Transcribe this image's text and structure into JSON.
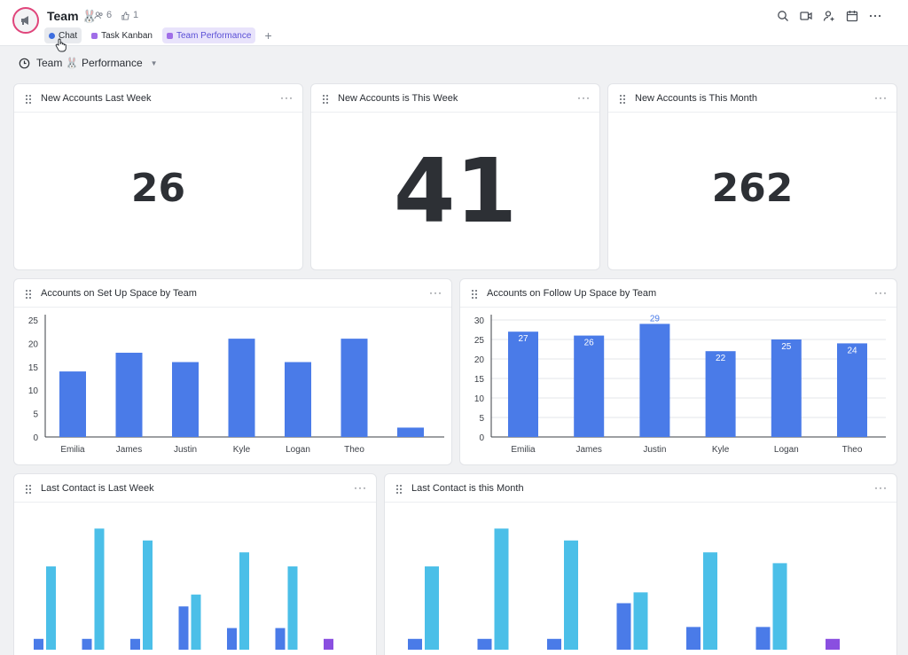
{
  "header": {
    "space_name": "Team 🐰",
    "members_count": "6",
    "watchers_count": "1",
    "tabs": [
      {
        "label": "Chat"
      },
      {
        "label": "Task Kanban"
      },
      {
        "label": "Team Performance"
      }
    ],
    "add_tab": "+"
  },
  "dashboard": {
    "title": "Team 🐰 Performance"
  },
  "cards": {
    "last_week": {
      "title": "New Accounts Last Week",
      "value": "26"
    },
    "this_week": {
      "title": "New Accounts is This Week",
      "value": "41"
    },
    "this_month": {
      "title": "New Accounts is This Month",
      "value": "262"
    },
    "setup": {
      "title": "Accounts on Set Up Space by Team"
    },
    "followup": {
      "title": "Accounts on Follow Up Space by Team"
    },
    "contact_week": {
      "title": "Last Contact is Last Week"
    },
    "contact_month": {
      "title": "Last Contact is this Month"
    },
    "more_label": "···"
  },
  "colors": {
    "accent": "#5a4fd6",
    "bar_primary": "#4a7be8",
    "bar_secondary": "#4bbfe8",
    "bar_other": "#8a4fe0",
    "avatar_ring": "#e0457b"
  },
  "chart_data": [
    {
      "id": "setup",
      "type": "bar",
      "categories": [
        "Emilia",
        "James",
        "Justin",
        "Kyle",
        "Logan",
        "Theo",
        ""
      ],
      "values": [
        14,
        18,
        16,
        21,
        16,
        21,
        2
      ],
      "ylim": [
        0,
        25
      ],
      "yticks": [
        0,
        5,
        10,
        15,
        20,
        25
      ],
      "grid": false
    },
    {
      "id": "followup",
      "type": "bar",
      "categories": [
        "Emilia",
        "James",
        "Justin",
        "Kyle",
        "Logan",
        "Theo"
      ],
      "values": [
        27,
        26,
        29,
        22,
        25,
        24
      ],
      "data_labels": [
        "27",
        "26",
        "29",
        "22",
        "25",
        "24"
      ],
      "ylim": [
        0,
        30
      ],
      "yticks": [
        0,
        5,
        10,
        15,
        20,
        25,
        30
      ],
      "grid": true
    },
    {
      "id": "contact_week",
      "type": "bar",
      "groups": [
        {
          "a": 1,
          "b": 7.7
        },
        {
          "a": 1,
          "b": 11.2
        },
        {
          "a": 1,
          "b": 10.1
        },
        {
          "a": 4,
          "b": 5.1
        },
        {
          "a": 2,
          "b": 9
        },
        {
          "a": 2,
          "b": 7.7
        },
        {
          "c": 1
        }
      ]
    },
    {
      "id": "contact_month",
      "type": "bar",
      "groups": [
        {
          "a": 1,
          "b": 7.7
        },
        {
          "a": 1,
          "b": 11.2
        },
        {
          "a": 1,
          "b": 10.1
        },
        {
          "a": 4.3,
          "b": 5.3
        },
        {
          "a": 2.1,
          "b": 9
        },
        {
          "a": 2.1,
          "b": 8
        },
        {
          "c": 1
        }
      ]
    }
  ]
}
